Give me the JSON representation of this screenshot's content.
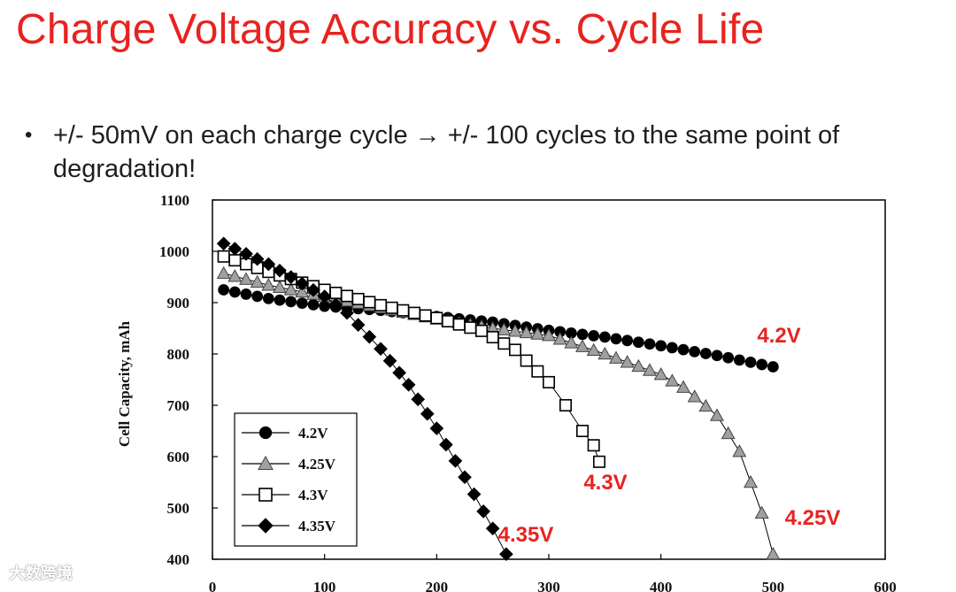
{
  "slide": {
    "title": "Charge Voltage Accuracy vs. Cycle Life",
    "bullet_marker": "•",
    "bullet_line1": "+/- 50mV on each charge cycle → +/- 100 cycles to the same point of",
    "bullet_line2": "degradation!",
    "watermark": "大数跨境"
  },
  "colors": {
    "title": "#e8231f",
    "annotation": "#e8231f",
    "series_4_2V": "#000000",
    "series_4_25V": "#a0a0a0",
    "series_4_3V": "#ffffff",
    "series_4_35V": "#000000"
  },
  "chart_data": {
    "type": "line",
    "ylabel": "Cell Capacity, mAh",
    "xlabel": "",
    "xlim": [
      0,
      600
    ],
    "ylim": [
      400,
      1100
    ],
    "xticks": [
      0,
      100,
      200,
      300,
      400,
      500,
      600
    ],
    "yticks": [
      400,
      500,
      600,
      700,
      800,
      900,
      1000,
      1100
    ],
    "grid": false,
    "legend_position": "bottom-left",
    "series": [
      {
        "name": "4.2V",
        "marker": "circle-filled",
        "annotation": "4.2V",
        "points": [
          [
            10,
            925
          ],
          [
            50,
            908
          ],
          [
            100,
            893
          ],
          [
            150,
            885
          ],
          [
            200,
            873
          ],
          [
            250,
            862
          ],
          [
            300,
            846
          ],
          [
            350,
            833
          ],
          [
            400,
            816
          ],
          [
            450,
            797
          ],
          [
            500,
            775
          ]
        ]
      },
      {
        "name": "4.25V",
        "marker": "triangle-gray",
        "annotation": "4.25V",
        "points": [
          [
            10,
            957
          ],
          [
            50,
            934
          ],
          [
            100,
            912
          ],
          [
            150,
            890
          ],
          [
            200,
            868
          ],
          [
            250,
            850
          ],
          [
            300,
            836
          ],
          [
            350,
            800
          ],
          [
            400,
            760
          ],
          [
            420,
            735
          ],
          [
            450,
            680
          ],
          [
            470,
            610
          ],
          [
            490,
            490
          ],
          [
            500,
            410
          ]
        ]
      },
      {
        "name": "4.3V",
        "marker": "square-open",
        "annotation": "4.3V",
        "points": [
          [
            10,
            990
          ],
          [
            50,
            960
          ],
          [
            100,
            925
          ],
          [
            150,
            895
          ],
          [
            200,
            870
          ],
          [
            240,
            845
          ],
          [
            270,
            808
          ],
          [
            300,
            745
          ],
          [
            315,
            700
          ],
          [
            330,
            650
          ],
          [
            340,
            622
          ],
          [
            345,
            590
          ]
        ]
      },
      {
        "name": "4.35V",
        "marker": "diamond-filled",
        "annotation": "4.35V",
        "points": [
          [
            10,
            1015
          ],
          [
            50,
            975
          ],
          [
            100,
            912
          ],
          [
            120,
            880
          ],
          [
            150,
            810
          ],
          [
            175,
            740
          ],
          [
            200,
            655
          ],
          [
            225,
            560
          ],
          [
            250,
            460
          ],
          [
            262,
            410
          ]
        ]
      }
    ]
  }
}
